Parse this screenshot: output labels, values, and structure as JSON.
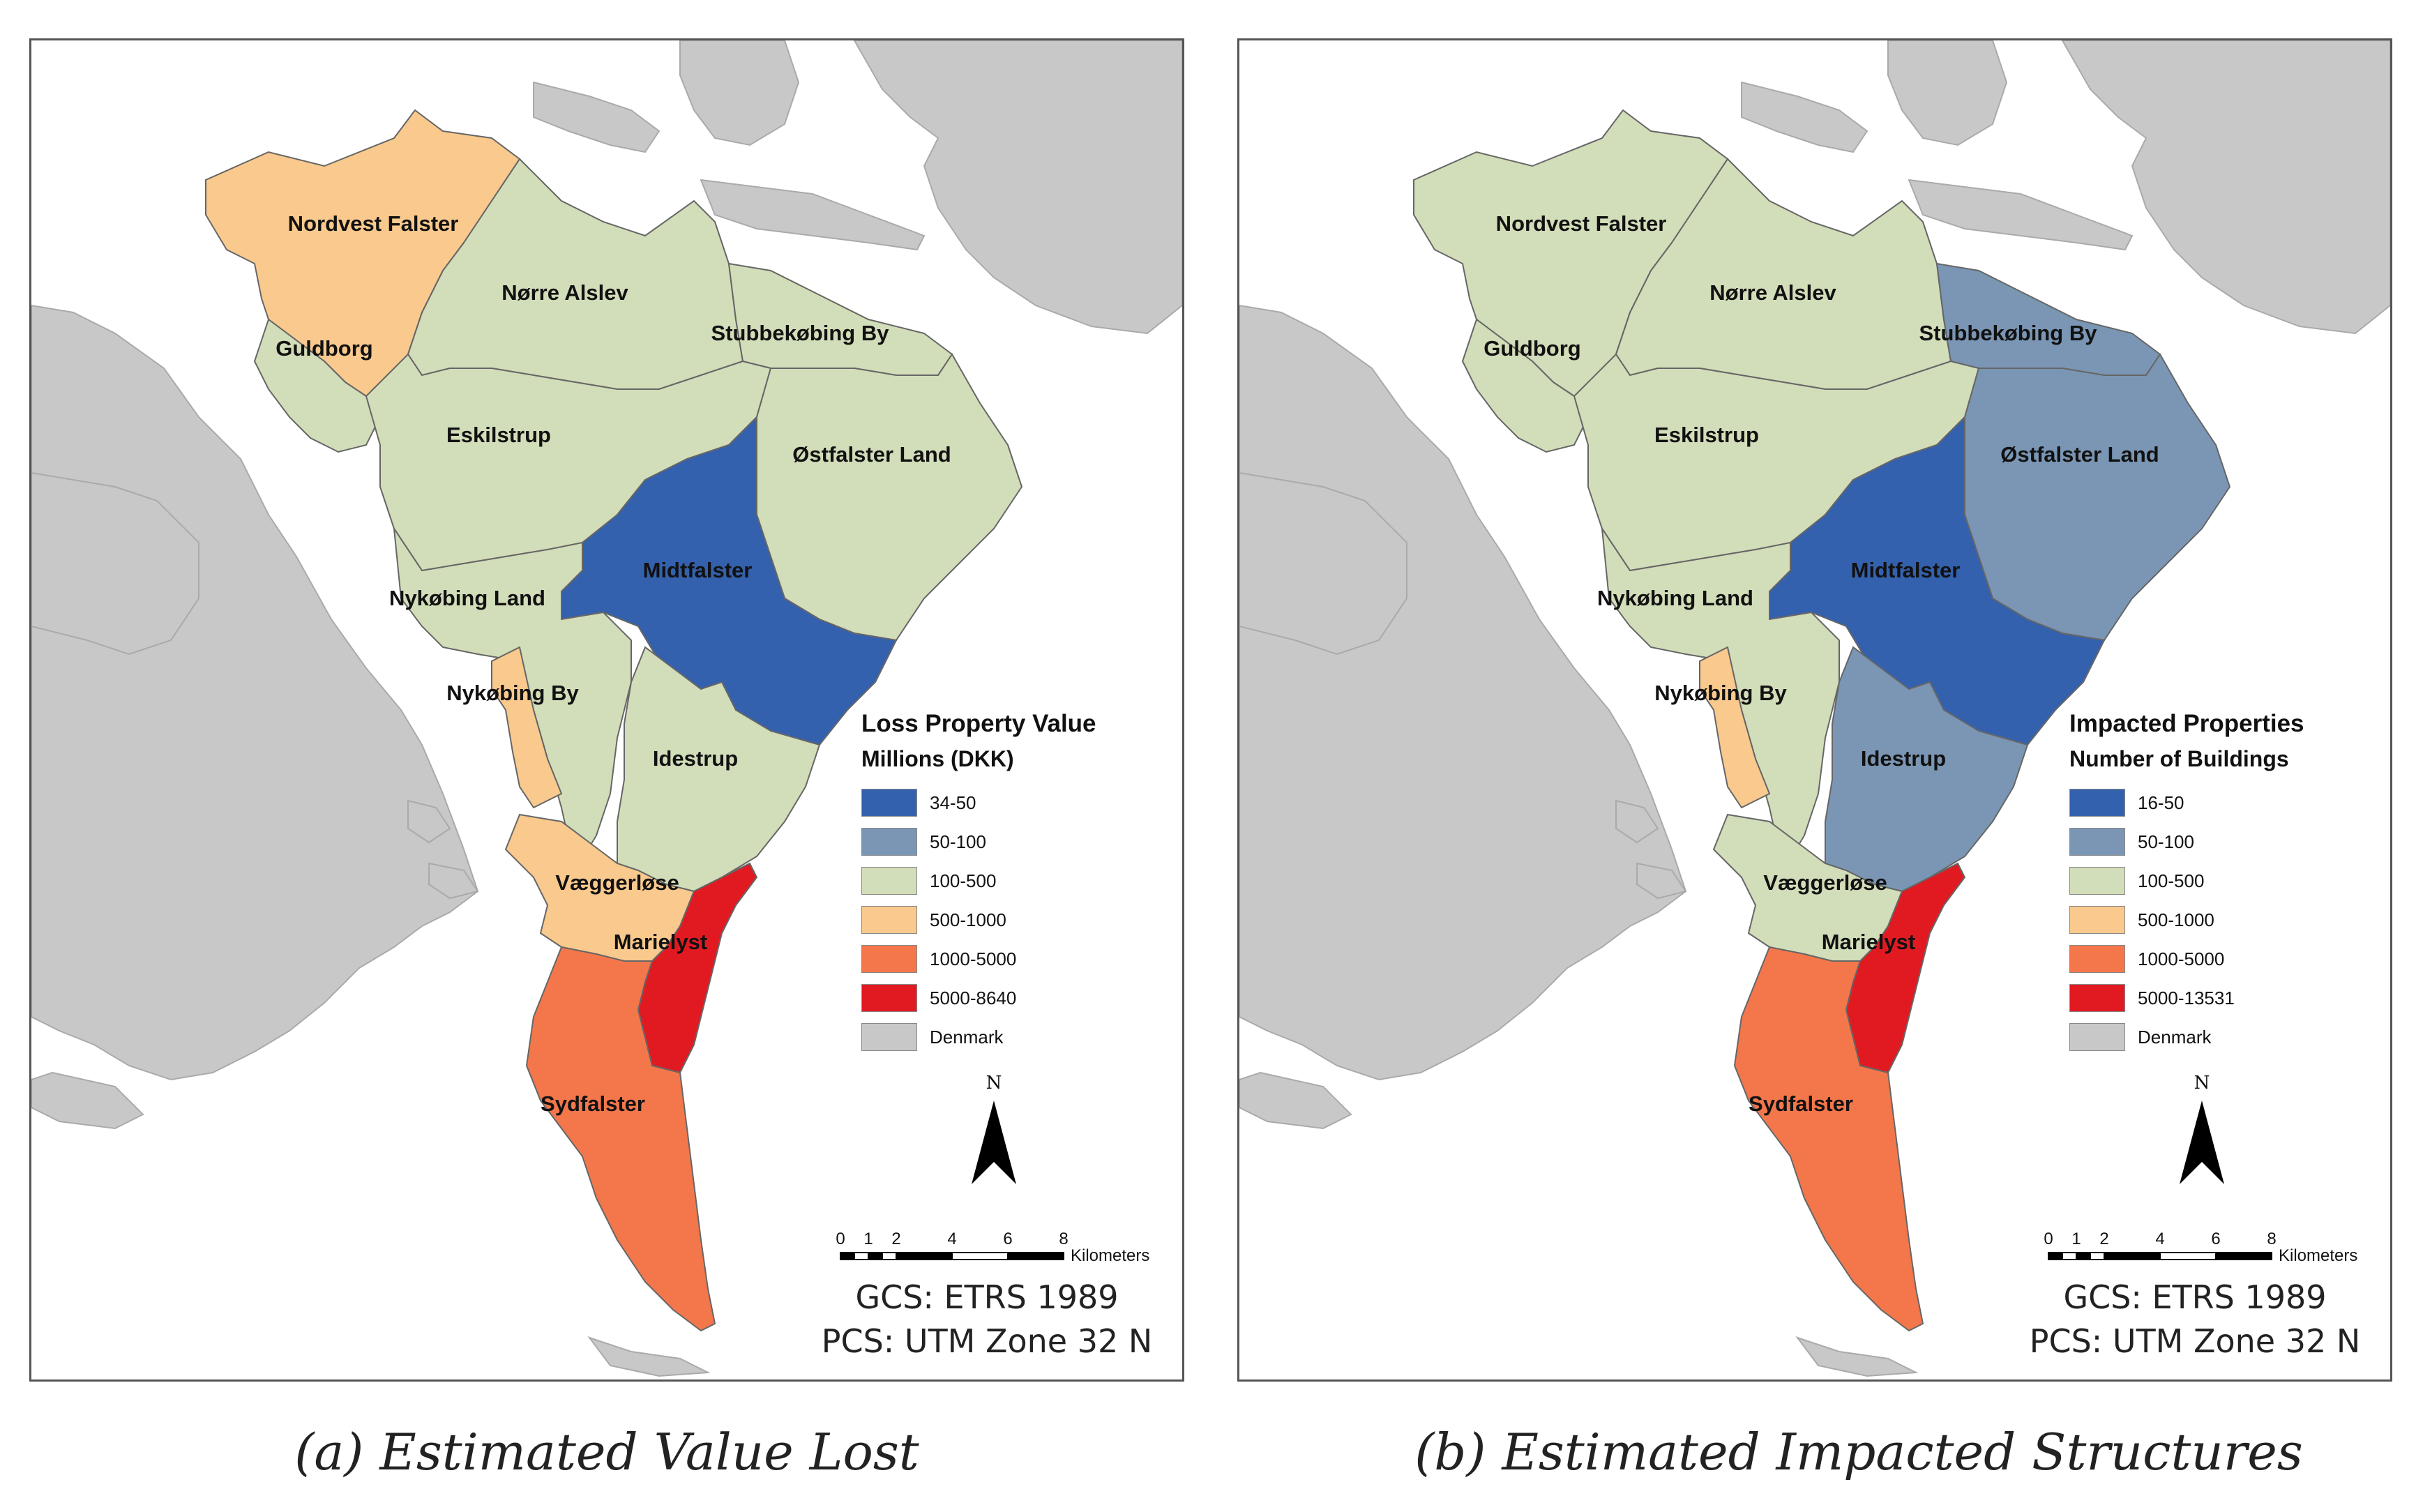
{
  "colors": {
    "land_denmark": "#c8c8c8",
    "water": "#ffffff",
    "class_1": "#3461ae",
    "class_2": "#7a96b4",
    "class_3": "#d2ddb9",
    "class_4": "#f9c98d",
    "class_5": "#f4774b",
    "class_6": "#e11a22"
  },
  "panels": [
    {
      "id": "a",
      "caption": "(a) Estimated Value Lost",
      "legend": {
        "title": "Loss Property Value",
        "subtitle": "Millions (DKK)",
        "items": [
          {
            "label": "34-50",
            "color": "#3461ae"
          },
          {
            "label": "50-100",
            "color": "#7a96b4"
          },
          {
            "label": "100-500",
            "color": "#d2ddb9"
          },
          {
            "label": "500-1000",
            "color": "#f9c98d"
          },
          {
            "label": "1000-5000",
            "color": "#f4774b"
          },
          {
            "label": "5000-8640",
            "color": "#e11a22"
          },
          {
            "label": "Denmark",
            "color": "#c8c8c8"
          }
        ]
      },
      "regions": [
        {
          "name": "Nordvest Falster",
          "class": "500-1000"
        },
        {
          "name": "Nørre Alslev",
          "class": "100-500"
        },
        {
          "name": "Guldborg",
          "class": "100-500"
        },
        {
          "name": "Stubbekøbing By",
          "class": "100-500"
        },
        {
          "name": "Eskilstrup",
          "class": "100-500"
        },
        {
          "name": "Østfalster Land",
          "class": "100-500"
        },
        {
          "name": "Midtfalster",
          "class": "34-50"
        },
        {
          "name": "Nykøbing Land",
          "class": "100-500"
        },
        {
          "name": "Nykøbing By",
          "class": "500-1000"
        },
        {
          "name": "Idestrup",
          "class": "100-500"
        },
        {
          "name": "Væggerløse",
          "class": "500-1000"
        },
        {
          "name": "Marielyst",
          "class": "5000-8640"
        },
        {
          "name": "Sydfalster",
          "class": "1000-5000"
        }
      ]
    },
    {
      "id": "b",
      "caption": "(b) Estimated Impacted Structures",
      "legend": {
        "title": "Impacted Properties",
        "subtitle": "Number of Buildings",
        "items": [
          {
            "label": "16-50",
            "color": "#3461ae"
          },
          {
            "label": "50-100",
            "color": "#7a96b4"
          },
          {
            "label": "100-500",
            "color": "#d2ddb9"
          },
          {
            "label": "500-1000",
            "color": "#f9c98d"
          },
          {
            "label": "1000-5000",
            "color": "#f4774b"
          },
          {
            "label": "5000-13531",
            "color": "#e11a22"
          },
          {
            "label": "Denmark",
            "color": "#c8c8c8"
          }
        ]
      },
      "regions": [
        {
          "name": "Nordvest Falster",
          "class": "100-500"
        },
        {
          "name": "Nørre Alslev",
          "class": "100-500"
        },
        {
          "name": "Guldborg",
          "class": "100-500"
        },
        {
          "name": "Stubbekøbing By",
          "class": "50-100"
        },
        {
          "name": "Eskilstrup",
          "class": "100-500"
        },
        {
          "name": "Østfalster Land",
          "class": "50-100"
        },
        {
          "name": "Midtfalster",
          "class": "16-50"
        },
        {
          "name": "Nykøbing Land",
          "class": "100-500"
        },
        {
          "name": "Nykøbing By",
          "class": "500-1000"
        },
        {
          "name": "Idestrup",
          "class": "50-100"
        },
        {
          "name": "Væggerløse",
          "class": "100-500"
        },
        {
          "name": "Marielyst",
          "class": "5000-13531"
        },
        {
          "name": "Sydfalster",
          "class": "1000-5000"
        }
      ]
    }
  ],
  "north_arrow": {
    "letter": "N"
  },
  "scale_bar": {
    "ticks": [
      "0",
      "1",
      "2",
      "4",
      "6",
      "8"
    ],
    "unit": "Kilometers"
  },
  "crs": {
    "gcs": "GCS: ETRS 1989",
    "pcs": "PCS: UTM Zone 32 N"
  }
}
